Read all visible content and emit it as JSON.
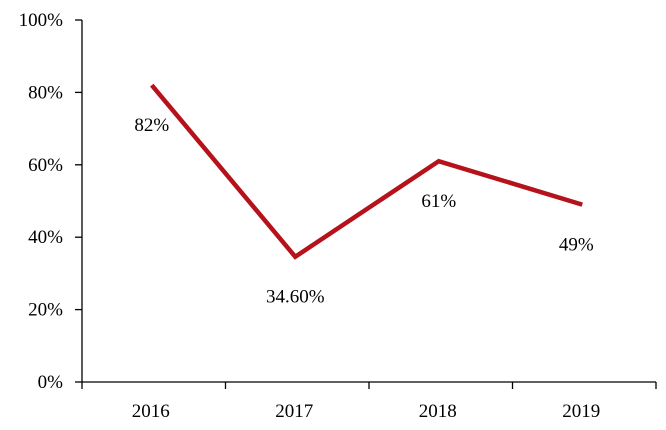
{
  "chart_data": {
    "type": "line",
    "title": "",
    "xlabel": "",
    "ylabel": "",
    "categories": [
      "2016",
      "2017",
      "2018",
      "2019"
    ],
    "series": [
      {
        "values": [
          82,
          34.6,
          61,
          49
        ],
        "labels": [
          "82%",
          "34.60%",
          "61%",
          "49%"
        ],
        "color": "#b5121b"
      }
    ],
    "ylim": [
      0,
      100
    ],
    "yticks": [
      0,
      20,
      40,
      60,
      80,
      100
    ],
    "ytick_labels": [
      "0%",
      "20%",
      "40%",
      "60%",
      "80%",
      "100%"
    ],
    "grid": false,
    "legend": "none"
  }
}
